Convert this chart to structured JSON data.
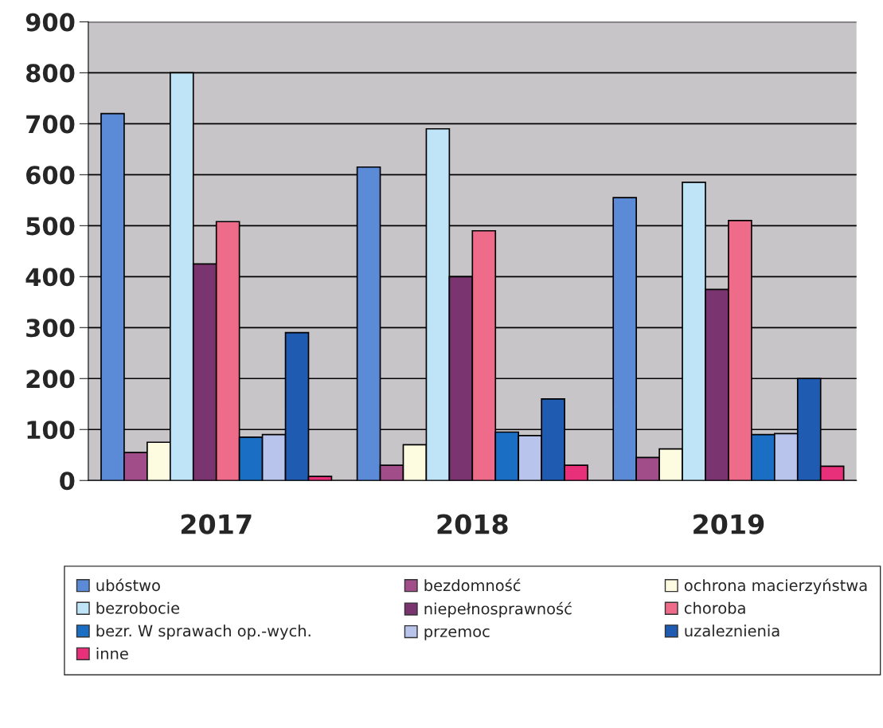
{
  "chart_data": {
    "type": "bar",
    "categories": [
      "2017",
      "2018",
      "2019"
    ],
    "series": [
      {
        "name": "ubóstwo",
        "color": "#5b8bd6",
        "values": [
          720,
          615,
          555
        ]
      },
      {
        "name": "bezdomność",
        "color": "#a04d8a",
        "values": [
          55,
          30,
          45
        ]
      },
      {
        "name": "ochrona macierzyństwa",
        "color": "#fdfbe0",
        "values": [
          75,
          70,
          62
        ]
      },
      {
        "name": "bezrobocie",
        "color": "#bfe4f8",
        "values": [
          800,
          690,
          585
        ]
      },
      {
        "name": "niepełnosprawność",
        "color": "#7a3470",
        "values": [
          425,
          400,
          375
        ]
      },
      {
        "name": "choroba",
        "color": "#ee6b8a",
        "values": [
          508,
          490,
          510
        ]
      },
      {
        "name": "bezr. W sprawach op.-wych.",
        "color": "#1a6fc4",
        "values": [
          85,
          95,
          90
        ]
      },
      {
        "name": "przemoc",
        "color": "#b8c4ec",
        "values": [
          90,
          88,
          92
        ]
      },
      {
        "name": "uzaleznienia",
        "color": "#1f5bb0",
        "values": [
          290,
          160,
          200
        ]
      },
      {
        "name": "inne",
        "color": "#e8307a",
        "values": [
          8,
          30,
          28
        ]
      }
    ],
    "ylim": [
      0,
      900
    ],
    "yticks": [
      0,
      100,
      200,
      300,
      400,
      500,
      600,
      700,
      800,
      900
    ],
    "grid": "y",
    "legend": "bottom"
  }
}
